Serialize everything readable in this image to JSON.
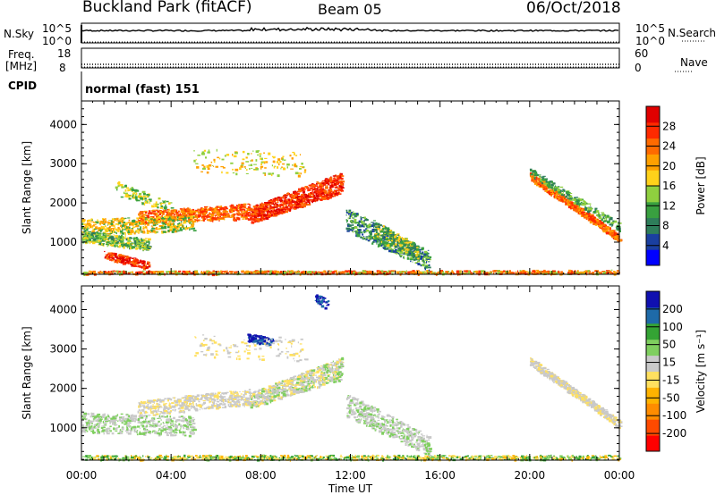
{
  "header": {
    "title": "Buckland Park (fitACF)",
    "beam": "Beam 05",
    "date": "06/Oct/2018"
  },
  "strip": {
    "nsky_label": "N.Sky",
    "nsky_hi": "10^5",
    "nsky_lo": "10^0",
    "nsearch_label": "N.Search",
    "freq_label": "Freq.",
    "freq_unit": "[MHz]",
    "freq_hi": "18",
    "freq_lo": "8",
    "nave_hi": "60",
    "nave_lo": "0",
    "nave_label": "Nave",
    "cpid_label": "CPID",
    "cpid_value": "normal (fast) 151"
  },
  "colors": {
    "power": [
      "#0000ff",
      "#1a3fa0",
      "#2e7d5a",
      "#39a040",
      "#8fcf3f",
      "#ffd21a",
      "#ffa000",
      "#ff6a00",
      "#ff2a00",
      "#e00000"
    ],
    "velocity": [
      "#ff0000",
      "#ff4a00",
      "#ff8c00",
      "#ffb300",
      "#ffe060",
      "#c9c9c9",
      "#7fcf5f",
      "#34a334",
      "#1e6aa8",
      "#1010b0"
    ]
  },
  "chart_data": [
    {
      "type": "heatmap",
      "panel": "power",
      "xlabel": "Time UT",
      "ylabel": "Slant Range [km]",
      "x_ticks": [
        "00:00",
        "04:00",
        "08:00",
        "12:00",
        "16:00",
        "20:00",
        "00:00"
      ],
      "y_ticks": [
        1000,
        2000,
        3000,
        4000
      ],
      "xlim": [
        0,
        24
      ],
      "ylim": [
        180,
        4600
      ],
      "colorbar_label": "Power [dB]",
      "colorbar_ticks": [
        4,
        8,
        12,
        16,
        20,
        24,
        28
      ],
      "colorbar_range": [
        0,
        32
      ]
    },
    {
      "type": "heatmap",
      "panel": "velocity",
      "xlabel": "Time UT",
      "ylabel": "Slant Range [km]",
      "x_ticks": [
        "00:00",
        "04:00",
        "08:00",
        "12:00",
        "16:00",
        "20:00",
        "00:00"
      ],
      "y_ticks": [
        1000,
        2000,
        3000,
        4000
      ],
      "xlim": [
        0,
        24
      ],
      "ylim": [
        180,
        4600
      ],
      "colorbar_label": "Velocity [m s⁻¹]",
      "colorbar_ticks": [
        "-200",
        "-100",
        "-50",
        "-15",
        "15",
        "50",
        "100",
        "200"
      ],
      "colorbar_range": [
        -250,
        250
      ]
    }
  ]
}
